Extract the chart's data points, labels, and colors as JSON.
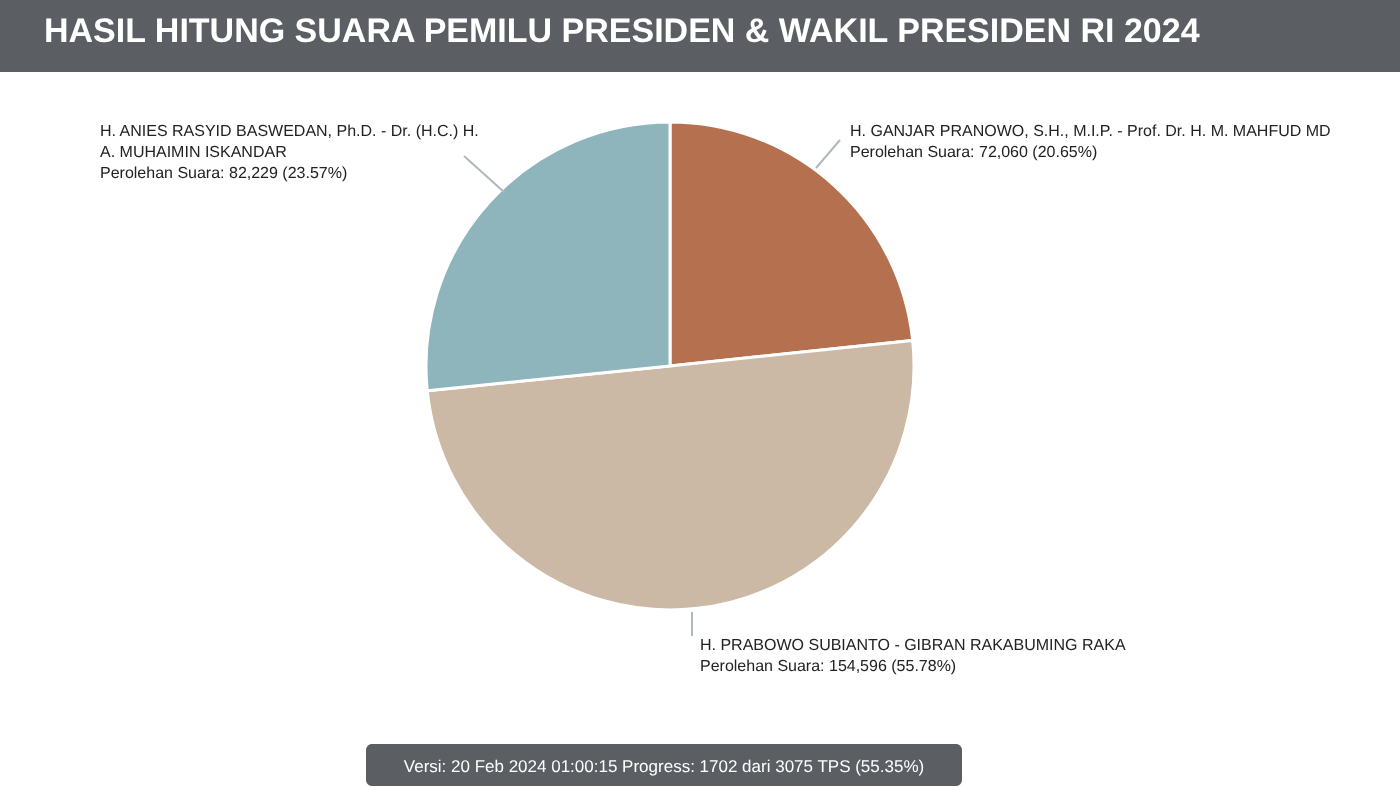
{
  "chart_data": {
    "type": "pie",
    "title": "HASIL HITUNG SUARA PEMILU PRESIDEN & WAKIL PRESIDEN RI 2024",
    "categories": [
      "H. GANJAR PRANOWO, S.H., M.I.P. - Prof. Dr. H. M. MAHFUD MD",
      "H. PRABOWO SUBIANTO - GIBRAN RAKABUMING RAKA",
      "H. ANIES RASYID BASWEDAN, Ph.D. - Dr. (H.C.) H. A. MUHAIMIN ISKANDAR"
    ],
    "values": [
      72060,
      154596,
      82229
    ],
    "value_labels": [
      "Perolehan Suara: 72,060 (20.65%)",
      "Perolehan Suara: 154,596 (55.78%)",
      "Perolehan Suara: 82,229 (23.57%)"
    ],
    "colors": [
      "#b5714f",
      "#cbb9a5",
      "#8db5bb"
    ],
    "annotations": [
      "Versi: 20 Feb 2024 01:00:15 Progress: 1702 dari 3075 TPS (55.35%)"
    ]
  }
}
